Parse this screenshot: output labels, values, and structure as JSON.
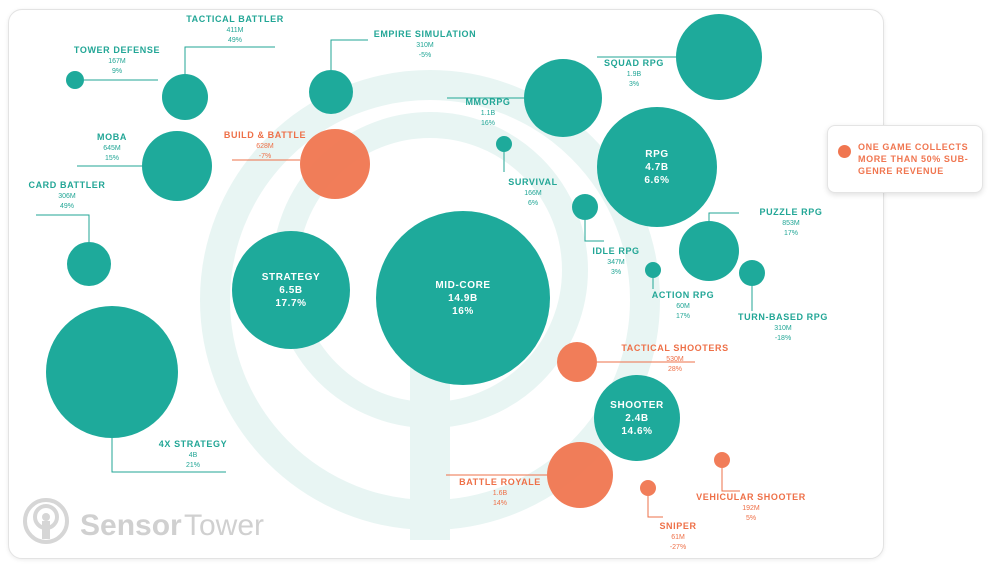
{
  "colors": {
    "teal": "#1eaa9b",
    "orange": "#f07650",
    "watermark": "#e8f5f3",
    "line_teal": "#22a696",
    "label_orange": "#ee7048"
  },
  "callout": {
    "text": "ONE GAME COLLECTS MORE THAN 50% SUB-GENRE REVENUE"
  },
  "logo": {
    "word1": "Sensor",
    "word2": "Tower"
  },
  "chart_data": {
    "type": "bubble",
    "title": "",
    "size_metric": "revenue",
    "notes": "Orange bubbles: one game collects more than 50% of sub-genre revenue",
    "bubbles": [
      {
        "name": "MID-CORE",
        "revenue": "14.9B",
        "share": "16%",
        "revenue_b": 14.9,
        "color": "teal",
        "label_inside": true
      },
      {
        "name": "STRATEGY",
        "revenue": "6.5B",
        "share": "17.7%",
        "revenue_b": 6.5,
        "color": "teal",
        "label_inside": true
      },
      {
        "name": "RPG",
        "revenue": "4.7B",
        "share": "6.6%",
        "revenue_b": 4.7,
        "color": "teal",
        "label_inside": true
      },
      {
        "name": "SHOOTER",
        "revenue": "2.4B",
        "share": "14.6%",
        "revenue_b": 2.4,
        "color": "teal",
        "label_inside": true
      },
      {
        "name": "4X STRATEGY",
        "revenue": "4B",
        "share": "21%",
        "revenue_b": 4.0,
        "color": "teal"
      },
      {
        "name": "TACTICAL BATTLER",
        "revenue": "411M",
        "share": "49%",
        "revenue_b": 0.411,
        "color": "teal"
      },
      {
        "name": "TOWER DEFENSE",
        "revenue": "167M",
        "share": "9%",
        "revenue_b": 0.167,
        "color": "teal"
      },
      {
        "name": "EMPIRE SIMULATION",
        "revenue": "310M",
        "share": "-5%",
        "revenue_b": 0.31,
        "color": "teal"
      },
      {
        "name": "MOBA",
        "revenue": "645M",
        "share": "15%",
        "revenue_b": 0.645,
        "color": "teal"
      },
      {
        "name": "BUILD & BATTLE",
        "revenue": "628M",
        "share": "-7%",
        "revenue_b": 0.628,
        "color": "orange"
      },
      {
        "name": "CARD BATTLER",
        "revenue": "306M",
        "share": "49%",
        "revenue_b": 0.306,
        "color": "teal"
      },
      {
        "name": "SQUAD RPG",
        "revenue": "1.9B",
        "share": "3%",
        "revenue_b": 1.9,
        "color": "teal"
      },
      {
        "name": "MMORPG",
        "revenue": "1.1B",
        "share": "16%",
        "revenue_b": 1.1,
        "color": "teal"
      },
      {
        "name": "SURVIVAL",
        "revenue": "166M",
        "share": "6%",
        "revenue_b": 0.166,
        "color": "teal"
      },
      {
        "name": "IDLE RPG",
        "revenue": "347M",
        "share": "3%",
        "revenue_b": 0.347,
        "color": "teal"
      },
      {
        "name": "PUZZLE RPG",
        "revenue": "853M",
        "share": "17%",
        "revenue_b": 0.853,
        "color": "teal"
      },
      {
        "name": "ACTION RPG",
        "revenue": "60M",
        "share": "17%",
        "revenue_b": 0.06,
        "color": "teal"
      },
      {
        "name": "TURN-BASED RPG",
        "revenue": "310M",
        "share": "-18%",
        "revenue_b": 0.31,
        "color": "teal"
      },
      {
        "name": "TACTICAL SHOOTERS",
        "revenue": "530M",
        "share": "28%",
        "revenue_b": 0.53,
        "color": "orange"
      },
      {
        "name": "BATTLE ROYALE",
        "revenue": "1.6B",
        "share": "14%",
        "revenue_b": 1.6,
        "color": "orange"
      },
      {
        "name": "SNIPER",
        "revenue": "61M",
        "share": "-27%",
        "revenue_b": 0.061,
        "color": "orange"
      },
      {
        "name": "VEHICULAR SHOOTER",
        "revenue": "192M",
        "share": "5%",
        "revenue_b": 0.192,
        "color": "orange"
      }
    ]
  }
}
